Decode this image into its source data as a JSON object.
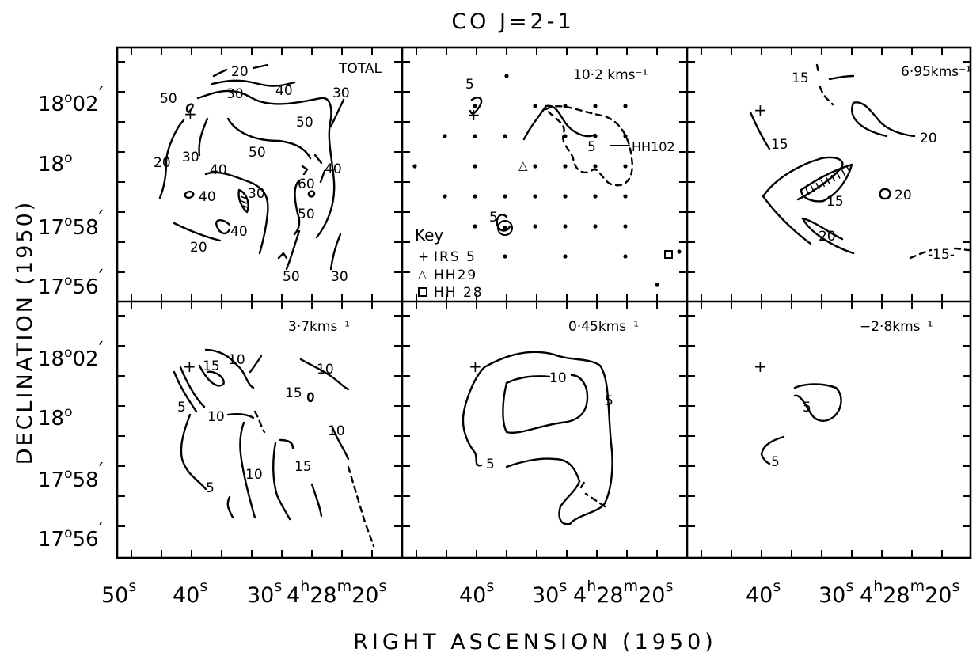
{
  "title": "CO   J=2-1",
  "ylabel": "DECLINATION (1950)",
  "xlabel": "RIGHT ASCENSION (1950)",
  "dec_ticks": [
    {
      "deg": "18",
      "min": "02",
      "prime": "′"
    },
    {
      "deg": "18",
      "min": "",
      "prime": ""
    },
    {
      "deg": "17",
      "min": "58",
      "prime": "′"
    },
    {
      "deg": "17",
      "min": "56",
      "prime": "′"
    }
  ],
  "ra_ticks": {
    "col1": [
      "50",
      "40",
      "30"
    ],
    "col23": [
      "40",
      "30"
    ],
    "sec": "s",
    "end": {
      "h": "4",
      "m": "28",
      "s": "20",
      "hsup": "h",
      "msup": "m",
      "ssup": "s"
    }
  },
  "panels": [
    {
      "id": "total",
      "label": "TOTAL"
    },
    {
      "id": "v10",
      "label": "10·2 kms⁻¹"
    },
    {
      "id": "v695",
      "label": "6·95kms⁻¹"
    },
    {
      "id": "v37",
      "label": "3·7kms⁻¹"
    },
    {
      "id": "v045",
      "label": "0·45kms⁻¹"
    },
    {
      "id": "vm28",
      "label": "−2·8kms⁻¹"
    }
  ],
  "contour_labels": {
    "total": [
      "20",
      "30",
      "40",
      "50",
      "30",
      "50",
      "50",
      "40",
      "20",
      "30",
      "40",
      "40",
      "30",
      "60",
      "50",
      "40",
      "20",
      "50",
      "30"
    ],
    "v10": [
      "5",
      "5",
      "5",
      "HH102"
    ],
    "v695": [
      "15",
      "15",
      "20",
      "15",
      "20",
      "20",
      "-15-"
    ],
    "v37": [
      "15",
      "10",
      "10",
      "15",
      "5",
      "10",
      "10",
      "10",
      "15",
      "5"
    ],
    "v045": [
      "10",
      "5",
      "5"
    ],
    "vm28": [
      "5",
      "5"
    ]
  },
  "key": {
    "title": "Key",
    "items": [
      {
        "symbol": "+",
        "label": "IRS 5"
      },
      {
        "symbol": "△",
        "label": "HH29"
      },
      {
        "symbol": "□",
        "label": "HH 28"
      }
    ]
  }
}
